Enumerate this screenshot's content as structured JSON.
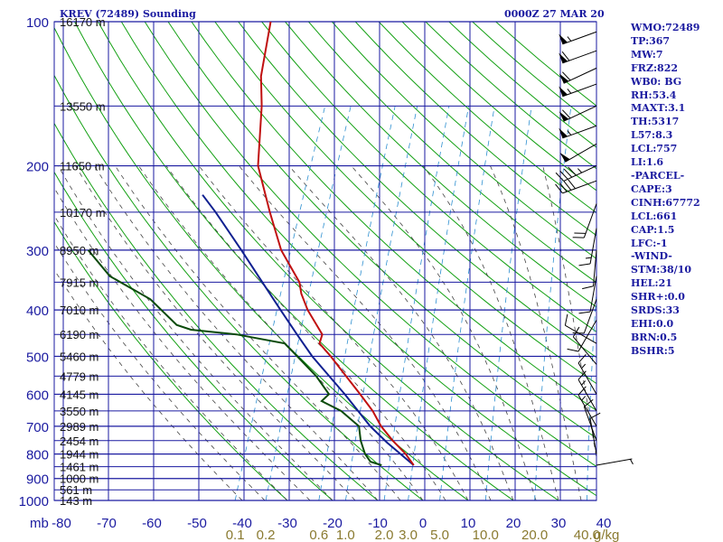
{
  "colors": {
    "background": "#ffffff",
    "grid": "#1a1aa0",
    "dry_adiabat": "#13a013",
    "moist_adiabat": "#444444",
    "mixing_ratio": "#2d8fd0",
    "temperature": "#c01010",
    "dewpoint": "#0a4a0a",
    "parcel": "#102090",
    "pressure_text": "#1a1aa0",
    "height_text": "#111111",
    "mixing_text": "#8a7a30",
    "wind_barb": "#000000"
  },
  "header": {
    "title": "KREV (72489) Sounding",
    "date": "0000Z 27 MAR 20"
  },
  "indices": [
    "WMO:72489",
    "TP:367",
    "MW:7",
    "FRZ:822",
    "WB0: BG",
    "RH:53.4",
    "MAXT:3.1",
    "TH:5317",
    "L57:8.3",
    "LCL:757",
    "LI:1.6",
    "-PARCEL-",
    "CAPE:3",
    "CINH:67772",
    "LCL:661",
    "CAP:1.5",
    "LFC:-1",
    "-WIND-",
    "STM:38/10",
    "HEL:21",
    "SHR+:0.0",
    "SRDS:33",
    "EHI:0.0",
    "BRN:0.5",
    "BSHR:5"
  ],
  "chart_data": {
    "type": "skew-t log-p",
    "pressure_unit": "mb",
    "pressure_range": [
      1000,
      100
    ],
    "pressure_labels": [
      "100",
      "200",
      "300",
      "400",
      "500",
      "600",
      "700",
      "800",
      "900",
      "1000"
    ],
    "temperature_ticks": [
      "-80",
      "-70",
      "-60",
      "-50",
      "-40",
      "-30",
      "-20",
      "-10",
      "0",
      "10",
      "20",
      "30",
      "40"
    ],
    "mixing_ratio_label": "g/kg",
    "mixing_ratio_ticks": [
      "0.1",
      "0.2",
      "0.6",
      "1.0",
      "2.0",
      "3.0",
      "5.0",
      "10.0",
      "20.0",
      "40.0"
    ],
    "height_labels": [
      {
        "p": 100,
        "text": "16170 m"
      },
      {
        "p": 150,
        "text": "13550 m"
      },
      {
        "p": 200,
        "text": "11650 m"
      },
      {
        "p": 250,
        "text": "10170 m"
      },
      {
        "p": 300,
        "text": "8950 m"
      },
      {
        "p": 350,
        "text": "7915 m"
      },
      {
        "p": 400,
        "text": "7010 m"
      },
      {
        "p": 450,
        "text": "6190 m"
      },
      {
        "p": 500,
        "text": "5460 m"
      },
      {
        "p": 550,
        "text": "4779 m"
      },
      {
        "p": 600,
        "text": "4145 m"
      },
      {
        "p": 650,
        "text": "3550 m"
      },
      {
        "p": 700,
        "text": "2989 m"
      },
      {
        "p": 750,
        "text": "2454 m"
      },
      {
        "p": 800,
        "text": "1944 m"
      },
      {
        "p": 850,
        "text": "1461 m"
      },
      {
        "p": 900,
        "text": "1000 m"
      },
      {
        "p": 950,
        "text": "561 m"
      },
      {
        "p": 1000,
        "text": "143 m"
      }
    ],
    "temperature_profile": [
      {
        "p": 844,
        "t": -5.3
      },
      {
        "p": 800,
        "t": -8.1
      },
      {
        "p": 750,
        "t": -12.2
      },
      {
        "p": 700,
        "t": -16.1
      },
      {
        "p": 650,
        "t": -19.4
      },
      {
        "p": 600,
        "t": -23.7
      },
      {
        "p": 550,
        "t": -28.5
      },
      {
        "p": 500,
        "t": -33.7
      },
      {
        "p": 470,
        "t": -37.4
      },
      {
        "p": 450,
        "t": -37.6
      },
      {
        "p": 400,
        "t": -43.1
      },
      {
        "p": 370,
        "t": -46.0
      },
      {
        "p": 350,
        "t": -47.5
      },
      {
        "p": 300,
        "t": -54.5
      },
      {
        "p": 250,
        "t": -60.5
      },
      {
        "p": 200,
        "t": -67.4
      },
      {
        "p": 150,
        "t": -72.1
      },
      {
        "p": 130,
        "t": -75.0
      },
      {
        "p": 100,
        "t": -77.9
      }
    ],
    "dewpoint_profile": [
      {
        "p": 844,
        "t": -12.4
      },
      {
        "p": 830,
        "t": -15.2
      },
      {
        "p": 800,
        "t": -17.1
      },
      {
        "p": 750,
        "t": -19.3
      },
      {
        "p": 700,
        "t": -21.0
      },
      {
        "p": 650,
        "t": -26.4
      },
      {
        "p": 620,
        "t": -31.6
      },
      {
        "p": 600,
        "t": -30.6
      },
      {
        "p": 550,
        "t": -35.1
      },
      {
        "p": 500,
        "t": -41.1
      },
      {
        "p": 470,
        "t": -45.1
      },
      {
        "p": 450,
        "t": -56.6
      },
      {
        "p": 440,
        "t": -67.1
      },
      {
        "p": 430,
        "t": -70.7
      },
      {
        "p": 380,
        "t": -78.9
      },
      {
        "p": 340,
        "t": -90.0
      },
      {
        "p": 300,
        "t": -97.2
      }
    ],
    "parcel_profile": [
      {
        "p": 844,
        "t": -5.3
      },
      {
        "p": 757,
        "t": -13.3
      },
      {
        "p": 700,
        "t": -18.5
      },
      {
        "p": 600,
        "t": -27.1
      },
      {
        "p": 500,
        "t": -37.8
      },
      {
        "p": 450,
        "t": -43.2
      },
      {
        "p": 400,
        "t": -49.1
      },
      {
        "p": 350,
        "t": -55.7
      },
      {
        "p": 300,
        "t": -63.3
      },
      {
        "p": 250,
        "t": -72.5
      },
      {
        "p": 230,
        "t": -77.0
      }
    ],
    "wind_barbs": [
      {
        "p": 105,
        "dir": 250,
        "spd": 55
      },
      {
        "p": 115,
        "dir": 250,
        "spd": 60
      },
      {
        "p": 125,
        "dir": 245,
        "spd": 60
      },
      {
        "p": 135,
        "dir": 250,
        "spd": 55
      },
      {
        "p": 150,
        "dir": 245,
        "spd": 60
      },
      {
        "p": 165,
        "dir": 250,
        "spd": 55
      },
      {
        "p": 180,
        "dir": 240,
        "spd": 50
      },
      {
        "p": 200,
        "dir": 245,
        "spd": 45
      },
      {
        "p": 215,
        "dir": 250,
        "spd": 40
      },
      {
        "p": 240,
        "dir": 200,
        "spd": 20
      },
      {
        "p": 270,
        "dir": 190,
        "spd": 15
      },
      {
        "p": 300,
        "dir": 185,
        "spd": 10
      },
      {
        "p": 340,
        "dir": 190,
        "spd": 10
      },
      {
        "p": 380,
        "dir": 200,
        "spd": 10
      },
      {
        "p": 420,
        "dir": 210,
        "spd": 10
      },
      {
        "p": 470,
        "dir": 300,
        "spd": 10
      },
      {
        "p": 520,
        "dir": 320,
        "spd": 10
      },
      {
        "p": 600,
        "dir": 330,
        "spd": 15
      },
      {
        "p": 650,
        "dir": 330,
        "spd": 15
      },
      {
        "p": 700,
        "dir": 330,
        "spd": 15
      },
      {
        "p": 750,
        "dir": 340,
        "spd": 10
      },
      {
        "p": 800,
        "dir": 350,
        "spd": 10
      },
      {
        "p": 844,
        "dir": 80,
        "spd": 5
      }
    ]
  }
}
